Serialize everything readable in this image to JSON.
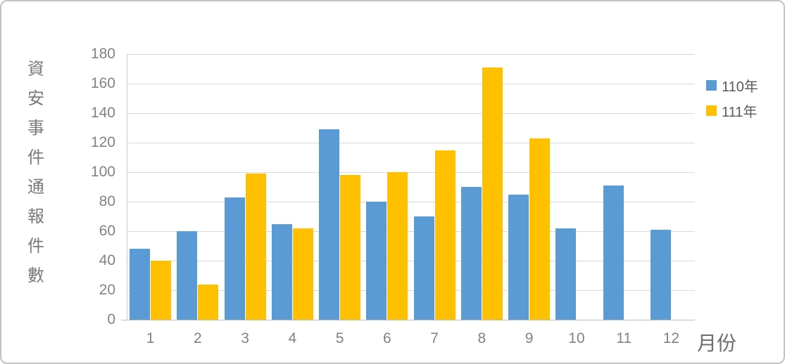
{
  "chart_data": {
    "type": "bar",
    "title": "",
    "ylabel": "資安事件通報件數",
    "xlabel": "月份",
    "categories": [
      "1",
      "2",
      "3",
      "4",
      "5",
      "6",
      "7",
      "8",
      "9",
      "10",
      "11",
      "12"
    ],
    "series": [
      {
        "name": "110年",
        "color": "#5B9BD5",
        "values": [
          48,
          60,
          83,
          65,
          129,
          80,
          70,
          90,
          85,
          62,
          91,
          61
        ]
      },
      {
        "name": "111年",
        "color": "#FFC000",
        "values": [
          40,
          24,
          99,
          62,
          98,
          100,
          115,
          171,
          123,
          null,
          null,
          null
        ]
      }
    ],
    "ylim": [
      0,
      180
    ],
    "yticks": [
      0,
      20,
      40,
      60,
      80,
      100,
      120,
      140,
      160,
      180
    ],
    "grid": true,
    "gridline_color": "#d9d9d9",
    "axis_line_color": "#bfbfbf",
    "tick_label_color": "#828282",
    "legend_position": "right"
  }
}
